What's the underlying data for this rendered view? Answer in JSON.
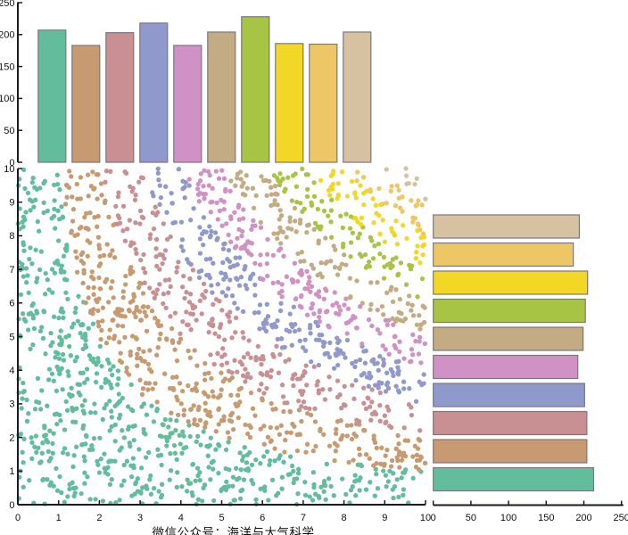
{
  "caption": "微信公众号：海洋与大气科学",
  "colors": {
    "background": "#ffffff",
    "axis": "#1a1a1a",
    "tick_label": "#111111",
    "bar_edge": "#7d7680",
    "groups": [
      "#63BD9D",
      "#C79A71",
      "#C89093",
      "#9099CB",
      "#D091C4",
      "#C3AB83",
      "#A8C445",
      "#F2D727",
      "#EDC765",
      "#D6C2A1"
    ]
  },
  "chart_data": [
    {
      "id": "top-histogram",
      "type": "bar",
      "orientation": "vertical",
      "title": "",
      "xlabel": "",
      "ylabel": "",
      "categories": [
        "0-1",
        "1-2",
        "2-3",
        "3-4",
        "4-5",
        "5-6",
        "6-7",
        "7-8",
        "8-9",
        "9-10"
      ],
      "values": [
        207,
        183,
        203,
        218,
        183,
        204,
        228,
        186,
        185,
        204
      ],
      "ylim": [
        0,
        250
      ],
      "yticks": [
        0,
        50,
        100,
        150,
        200,
        250
      ],
      "grid": false,
      "legend": "none",
      "bar_color_mode": "one color per bin, from colors.groups in order"
    },
    {
      "id": "main-scatter",
      "type": "scatter",
      "title": "",
      "xlabel": "",
      "ylabel": "",
      "x_range": [
        0,
        10
      ],
      "y_range": [
        0,
        10
      ],
      "xticks": [
        0,
        1,
        2,
        3,
        4,
        5,
        6,
        7,
        8,
        9,
        10
      ],
      "yticks": [
        0,
        1,
        2,
        3,
        4,
        5,
        6,
        7,
        8,
        9,
        10
      ],
      "n_points": 2000,
      "distribution": "uniform over [0,10] x [0,10]",
      "color_rule": "group = floor(x*y/10), clamped to 9; hyperbolic color bands, color = colors.groups[group]",
      "marker_diameter_px": 5.3,
      "seed": 20240601,
      "grid": false,
      "legend": "none"
    },
    {
      "id": "right-histogram",
      "type": "bar",
      "orientation": "horizontal",
      "title": "",
      "xlabel": "",
      "ylabel": "",
      "categories": [
        "0-1",
        "1-2",
        "2-3",
        "3-4",
        "4-5",
        "5-6",
        "6-7",
        "7-8",
        "8-9",
        "9-10"
      ],
      "values": [
        213,
        204,
        204,
        201,
        192,
        199,
        202,
        205,
        186,
        194
      ],
      "value_order": "bottom-to-top",
      "xlim": [
        0,
        250
      ],
      "xticks": [
        0,
        50,
        100,
        150,
        200,
        250
      ],
      "grid": false,
      "legend": "none",
      "bar_color_mode": "one color per bin, from colors.groups in order"
    }
  ]
}
